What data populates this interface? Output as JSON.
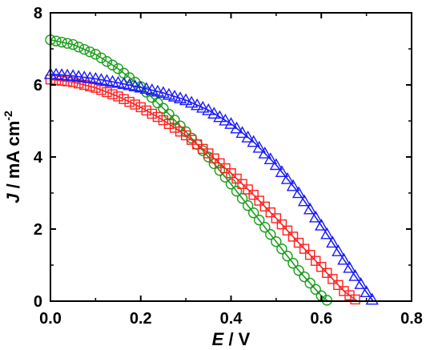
{
  "chart_data": {
    "type": "scatter",
    "xlabel": {
      "italic": "E",
      "rest": " / V"
    },
    "ylabel": {
      "italic": "J",
      "rest": " / mA cm",
      "sup": "-2"
    },
    "xlim": [
      0,
      0.8
    ],
    "ylim": [
      0,
      8
    ],
    "xticks": [
      0,
      0.2,
      0.4,
      0.6,
      0.8
    ],
    "yticks": [
      0,
      2,
      4,
      6,
      8
    ],
    "xtick_labels": [
      "0.0",
      "0.2",
      "0.4",
      "0.6",
      "0.8"
    ],
    "ytick_labels": [
      "0",
      "2",
      "4",
      "6",
      "8"
    ],
    "grid": false,
    "legend": "none",
    "series": [
      {
        "marker": "circle",
        "color": "#1a9e1a",
        "x": [
          0.0,
          0.05,
          0.1,
          0.15,
          0.2,
          0.25,
          0.3,
          0.35,
          0.4,
          0.45,
          0.5,
          0.55,
          0.6,
          0.615
        ],
        "y": [
          7.25,
          7.12,
          6.85,
          6.45,
          5.95,
          5.35,
          4.7,
          4.0,
          3.25,
          2.45,
          1.65,
          0.85,
          0.15,
          0.0
        ]
      },
      {
        "marker": "square",
        "color": "#ff2020",
        "x": [
          0.0,
          0.05,
          0.1,
          0.15,
          0.2,
          0.25,
          0.3,
          0.35,
          0.4,
          0.45,
          0.5,
          0.55,
          0.6,
          0.65,
          0.68
        ],
        "y": [
          6.15,
          6.08,
          5.92,
          5.68,
          5.38,
          5.02,
          4.6,
          4.1,
          3.55,
          2.95,
          2.3,
          1.62,
          0.95,
          0.28,
          0.0
        ]
      },
      {
        "marker": "triangle",
        "color": "#1a1aff",
        "x": [
          0.0,
          0.05,
          0.1,
          0.15,
          0.2,
          0.25,
          0.3,
          0.35,
          0.4,
          0.45,
          0.5,
          0.55,
          0.6,
          0.65,
          0.7,
          0.715
        ],
        "y": [
          6.3,
          6.25,
          6.17,
          6.06,
          5.93,
          5.78,
          5.58,
          5.3,
          4.92,
          4.42,
          3.78,
          3.0,
          2.1,
          1.15,
          0.25,
          0.0
        ]
      }
    ]
  }
}
